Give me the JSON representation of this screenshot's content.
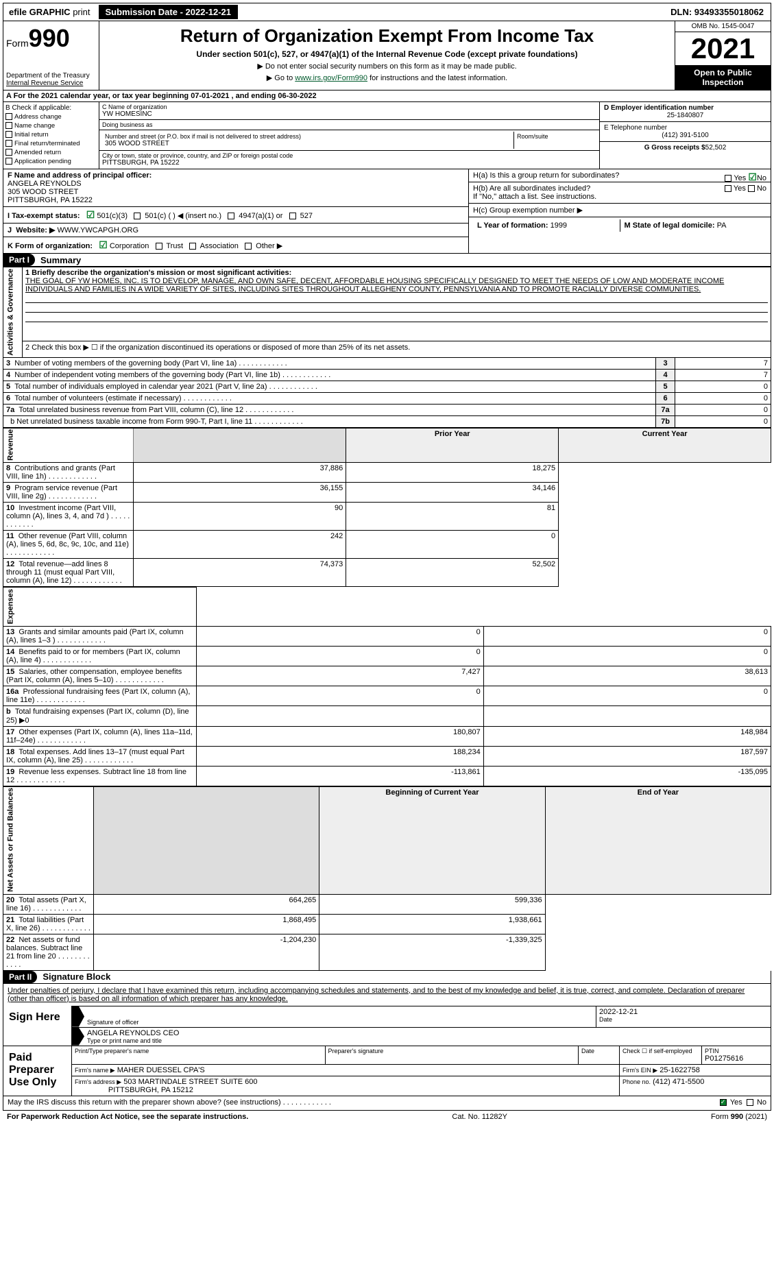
{
  "topbar": {
    "efile": "efile GRAPHIC",
    "print": "print",
    "submission_label": "Submission Date - 2022-12-21",
    "dln": "DLN: 93493355018062"
  },
  "header": {
    "form_label": "Form",
    "form_num": "990",
    "dept": "Department of the Treasury",
    "irs": "Internal Revenue Service",
    "title": "Return of Organization Exempt From Income Tax",
    "subtitle": "Under section 501(c), 527, or 4947(a)(1) of the Internal Revenue Code (except private foundations)",
    "note1": "▶ Do not enter social security numbers on this form as it may be made public.",
    "note2_pre": "▶ Go to ",
    "note2_link": "www.irs.gov/Form990",
    "note2_post": " for instructions and the latest information.",
    "omb": "OMB No. 1545-0047",
    "year": "2021",
    "open": "Open to Public Inspection"
  },
  "rowA": {
    "text": "A For the 2021 calendar year, or tax year beginning 07-01-2021     , and ending 06-30-2022"
  },
  "colB": {
    "label": "B Check if applicable:",
    "addr": "Address change",
    "name": "Name change",
    "init": "Initial return",
    "final": "Final return/terminated",
    "amend": "Amended return",
    "app": "Application pending"
  },
  "colC": {
    "c_label": "C Name of organization",
    "org": "YW HOMESINC",
    "dba_label": "Doing business as",
    "dba": "",
    "street_label": "Number and street (or P.O. box if mail is not delivered to street address)",
    "room_label": "Room/suite",
    "street": "305 WOOD STREET",
    "city_label": "City or town, state or province, country, and ZIP or foreign postal code",
    "city": "PITTSBURGH, PA  15222"
  },
  "colD": {
    "d_label": "D Employer identification number",
    "ein": "25-1840807",
    "e_label": "E Telephone number",
    "phone": "(412) 391-5100",
    "g_label": "G Gross receipts $",
    "gross": "52,502"
  },
  "rowF": {
    "f_label": "F Name and address of principal officer:",
    "name": "ANGELA REYNOLDS",
    "addr1": "305 WOOD STREET",
    "addr2": "PITTSBURGH, PA  15222",
    "i_label": "I Tax-exempt status:",
    "i_501c3": "501(c)(3)",
    "i_501c": "501(c) (  ) ◀ (insert no.)",
    "i_4947": "4947(a)(1) or",
    "i_527": "527",
    "j_label": "J",
    "j_web": "Website: ▶",
    "j_url": " WWW.YWCAPGH.ORG",
    "k_label": "K Form of organization:",
    "k_corp": "Corporation",
    "k_trust": "Trust",
    "k_assoc": "Association",
    "k_other": "Other ▶"
  },
  "rowH": {
    "ha": "H(a)  Is this a group return for subordinates?",
    "hb": "H(b)  Are all subordinates included?",
    "hb2": "If \"No,\" attach a list. See instructions.",
    "hc": "H(c)  Group exemption number ▶",
    "yes": "Yes",
    "no": "No",
    "l_label": "L Year of formation:",
    "l_val": "1999",
    "m_label": "M State of legal domicile:",
    "m_val": "PA"
  },
  "part1": {
    "label": "Part I",
    "title": "Summary",
    "side_gov": "Activities & Governance",
    "side_rev": "Revenue",
    "side_exp": "Expenses",
    "side_net": "Net Assets or Fund Balances",
    "q1": "1 Briefly describe the organization's mission or most significant activities:",
    "mission": "THE GOAL OF YW HOMES, INC. IS TO DEVELOP, MANAGE, AND OWN SAFE, DECENT, AFFORDABLE HOUSING SPECIFICALLY DESIGNED TO MEET THE NEEDS OF LOW AND MODERATE INCOME INDIVIDUALS AND FAMILIES IN A WIDE VARIETY OF SITES, INCLUDING SITES THROUGHOUT ALLEGHENY COUNTY, PENNSYLVANIA AND TO PROMOTE RACIALLY DIVERSE COMMUNITIES.",
    "q2": "2  Check this box ▶ ☐ if the organization discontinued its operations or disposed of more than 25% of its net assets.",
    "rows_gov": [
      {
        "n": "3",
        "t": "Number of voting members of the governing body (Part VI, line 1a)",
        "b": "3",
        "v": "7"
      },
      {
        "n": "4",
        "t": "Number of independent voting members of the governing body (Part VI, line 1b)",
        "b": "4",
        "v": "7"
      },
      {
        "n": "5",
        "t": "Total number of individuals employed in calendar year 2021 (Part V, line 2a)",
        "b": "5",
        "v": "0"
      },
      {
        "n": "6",
        "t": "Total number of volunteers (estimate if necessary)",
        "b": "6",
        "v": "0"
      },
      {
        "n": "7a",
        "t": "Total unrelated business revenue from Part VIII, column (C), line 12",
        "b": "7a",
        "v": "0"
      },
      {
        "n": "",
        "t": "b Net unrelated business taxable income from Form 990-T, Part I, line 11",
        "b": "7b",
        "v": "0"
      }
    ],
    "col_py": "Prior Year",
    "col_cy": "Current Year",
    "rows_rev": [
      {
        "n": "8",
        "t": "Contributions and grants (Part VIII, line 1h)",
        "p": "37,886",
        "c": "18,275"
      },
      {
        "n": "9",
        "t": "Program service revenue (Part VIII, line 2g)",
        "p": "36,155",
        "c": "34,146"
      },
      {
        "n": "10",
        "t": "Investment income (Part VIII, column (A), lines 3, 4, and 7d )",
        "p": "90",
        "c": "81"
      },
      {
        "n": "11",
        "t": "Other revenue (Part VIII, column (A), lines 5, 6d, 8c, 9c, 10c, and 11e)",
        "p": "242",
        "c": "0"
      },
      {
        "n": "12",
        "t": "Total revenue—add lines 8 through 11 (must equal Part VIII, column (A), line 12)",
        "p": "74,373",
        "c": "52,502"
      }
    ],
    "rows_exp": [
      {
        "n": "13",
        "t": "Grants and similar amounts paid (Part IX, column (A), lines 1–3 )",
        "p": "0",
        "c": "0"
      },
      {
        "n": "14",
        "t": "Benefits paid to or for members (Part IX, column (A), line 4)",
        "p": "0",
        "c": "0"
      },
      {
        "n": "15",
        "t": "Salaries, other compensation, employee benefits (Part IX, column (A), lines 5–10)",
        "p": "7,427",
        "c": "38,613"
      },
      {
        "n": "16a",
        "t": "Professional fundraising fees (Part IX, column (A), line 11e)",
        "p": "0",
        "c": "0"
      },
      {
        "n": "b",
        "t": "Total fundraising expenses (Part IX, column (D), line 25) ▶0",
        "p": "",
        "c": "",
        "grey": true
      },
      {
        "n": "17",
        "t": "Other expenses (Part IX, column (A), lines 11a–11d, 11f–24e)",
        "p": "180,807",
        "c": "148,984"
      },
      {
        "n": "18",
        "t": "Total expenses. Add lines 13–17 (must equal Part IX, column (A), line 25)",
        "p": "188,234",
        "c": "187,597"
      },
      {
        "n": "19",
        "t": "Revenue less expenses. Subtract line 18 from line 12",
        "p": "-113,861",
        "c": "-135,095"
      }
    ],
    "col_boy": "Beginning of Current Year",
    "col_eoy": "End of Year",
    "rows_net": [
      {
        "n": "20",
        "t": "Total assets (Part X, line 16)",
        "p": "664,265",
        "c": "599,336"
      },
      {
        "n": "21",
        "t": "Total liabilities (Part X, line 26)",
        "p": "1,868,495",
        "c": "1,938,661"
      },
      {
        "n": "22",
        "t": "Net assets or fund balances. Subtract line 21 from line 20",
        "p": "-1,204,230",
        "c": "-1,339,325"
      }
    ]
  },
  "part2": {
    "label": "Part II",
    "title": "Signature Block",
    "decl": "Under penalties of perjury, I declare that I have examined this return, including accompanying schedules and statements, and to the best of my knowledge and belief, it is true, correct, and complete. Declaration of preparer (other than officer) is based on all information of which preparer has any knowledge.",
    "sign_here": "Sign Here",
    "sig_officer": "Signature of officer",
    "date": "Date",
    "date_val": "2022-12-21",
    "name_title": "ANGELA REYNOLDS CEO",
    "name_label": "Type or print name and title",
    "paid": "Paid Preparer Use Only",
    "prep_name_label": "Print/Type preparer's name",
    "prep_sig_label": "Preparer's signature",
    "prep_date_label": "Date",
    "check_self": "Check ☐ if self-employed",
    "ptin_label": "PTIN",
    "ptin": "P01275616",
    "firm_name_label": "Firm's name    ▶",
    "firm_name": "MAHER DUESSEL CPA'S",
    "firm_ein_label": "Firm's EIN ▶",
    "firm_ein": "25-1622758",
    "firm_addr_label": "Firm's address ▶",
    "firm_addr1": "503 MARTINDALE STREET SUITE 600",
    "firm_addr2": "PITTSBURGH, PA  15212",
    "phone_label": "Phone no.",
    "phone": "(412) 471-5500",
    "discuss": "May the IRS discuss this return with the preparer shown above? (see instructions)",
    "yes": "Yes",
    "no": "No"
  },
  "footer": {
    "pra": "For Paperwork Reduction Act Notice, see the separate instructions.",
    "cat": "Cat. No. 11282Y",
    "form": "Form 990 (2021)"
  }
}
